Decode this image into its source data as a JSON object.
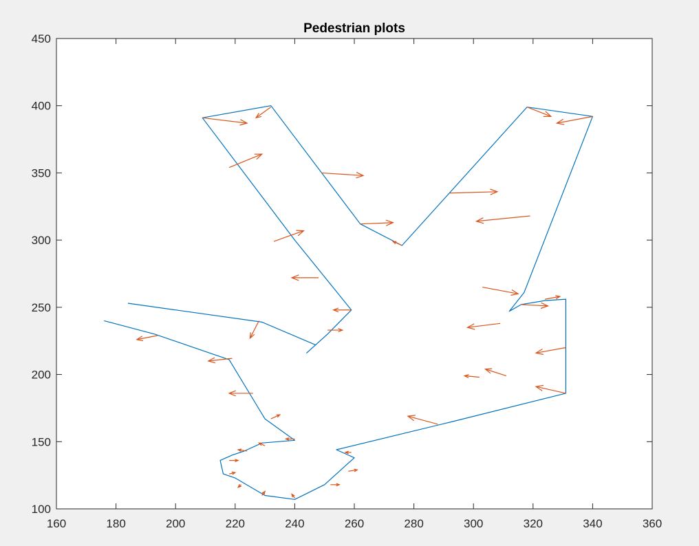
{
  "chart_data": {
    "type": "line",
    "title": "Pedestrian plots",
    "xlabel": "",
    "ylabel": "",
    "xlim": [
      160,
      360
    ],
    "ylim": [
      100,
      450
    ],
    "xticks": [
      160,
      180,
      200,
      220,
      240,
      260,
      280,
      300,
      320,
      340,
      360
    ],
    "yticks": [
      100,
      150,
      200,
      250,
      300,
      350,
      400,
      450
    ],
    "grid": false,
    "legend": "none",
    "colors": {
      "outline": "#0072bd",
      "arrows": "#d95319"
    },
    "series": [
      {
        "type": "line",
        "color": "#0072bd",
        "x": [
          184,
          229,
          247,
          244,
          251,
          259,
          240,
          209,
          232,
          262,
          276,
          318,
          340,
          317,
          312,
          316,
          324,
          331,
          331,
          293,
          254,
          260,
          250,
          240,
          230,
          220,
          216,
          215,
          219,
          223,
          229,
          240,
          230,
          218,
          193,
          176
        ],
        "y": [
          253,
          239,
          222,
          216,
          230,
          248,
          300,
          391,
          400,
          312,
          296,
          399,
          392,
          261,
          247,
          252,
          255,
          256,
          186,
          165,
          144,
          138,
          118,
          107,
          110,
          123,
          126,
          136,
          140,
          143,
          149,
          151,
          167,
          211,
          230,
          240
        ]
      },
      {
        "type": "quiver",
        "color": "#d95319",
        "arrows": [
          [
            209,
            391,
            15,
            -4
          ],
          [
            232,
            399,
            -5,
            -8
          ],
          [
            218,
            354,
            11,
            10
          ],
          [
            249,
            350,
            14,
            -2
          ],
          [
            262,
            312,
            11,
            1
          ],
          [
            276,
            296,
            -3,
            3
          ],
          [
            318,
            399,
            8,
            -7
          ],
          [
            340,
            392,
            -12,
            -5
          ],
          [
            292,
            335,
            16,
            1
          ],
          [
            319,
            318,
            -18,
            -4
          ],
          [
            233,
            299,
            10,
            8
          ],
          [
            248,
            272,
            -9,
            0
          ],
          [
            259,
            248,
            -6,
            0
          ],
          [
            228,
            240,
            -3,
            -13
          ],
          [
            244,
            216,
            0,
            0
          ],
          [
            251,
            233,
            5,
            0
          ],
          [
            303,
            265,
            12,
            -5
          ],
          [
            309,
            238,
            -11,
            -3
          ],
          [
            302,
            198,
            -5,
            1
          ],
          [
            311,
            199,
            -7,
            5
          ],
          [
            316,
            252,
            9,
            -1
          ],
          [
            324,
            256,
            5,
            2
          ],
          [
            331,
            220,
            -10,
            -4
          ],
          [
            331,
            186,
            -10,
            5
          ],
          [
            288,
            163,
            -10,
            6
          ],
          [
            194,
            229,
            -7,
            -3
          ],
          [
            219,
            212,
            -8,
            -2
          ],
          [
            226,
            186,
            -8,
            0
          ],
          [
            232,
            167,
            3,
            3
          ],
          [
            240,
            152,
            -3,
            0
          ],
          [
            230,
            147,
            -2,
            2
          ],
          [
            224,
            143,
            -3,
            1
          ],
          [
            218,
            136,
            3,
            0
          ],
          [
            218,
            126,
            2,
            1
          ],
          [
            222,
            118,
            -1,
            -2
          ],
          [
            229,
            110,
            1,
            3
          ],
          [
            240,
            108,
            -1,
            3
          ],
          [
            252,
            118,
            3,
            0
          ],
          [
            258,
            128,
            3,
            1
          ],
          [
            259,
            142,
            -2,
            0
          ]
        ]
      }
    ]
  }
}
